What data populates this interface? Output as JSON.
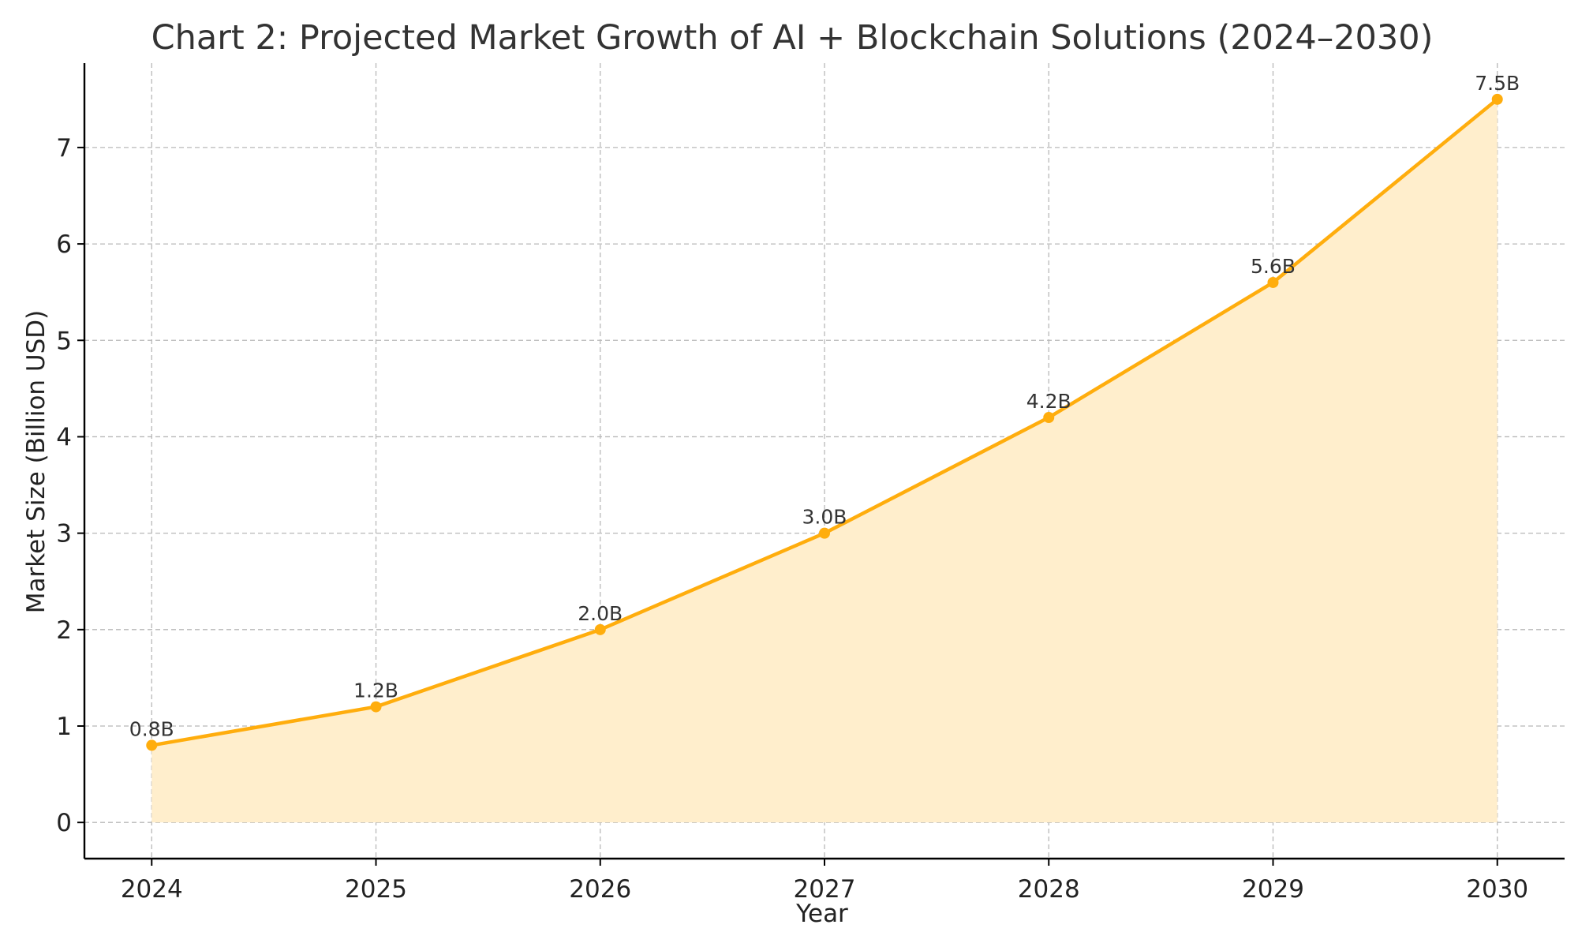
{
  "chart_data": {
    "type": "area",
    "title": "Chart 2: Projected Market Growth of AI + Blockchain Solutions (2024–2030)",
    "xlabel": "Year",
    "ylabel": "Market Size (Billion USD)",
    "x": [
      "2024",
      "2025",
      "2026",
      "2027",
      "2028",
      "2029",
      "2030"
    ],
    "y": [
      0.8,
      1.2,
      2.0,
      3.0,
      4.2,
      5.6,
      7.5
    ],
    "data_labels": [
      "0.8B",
      "1.2B",
      "2.0B",
      "3.0B",
      "4.2B",
      "5.6B",
      "7.5B"
    ],
    "yticks": [
      "0",
      "1",
      "2",
      "3",
      "4",
      "5",
      "6",
      "7"
    ],
    "xlim": [
      2023.7,
      2030.3
    ],
    "ylim": [
      -0.375,
      7.875
    ],
    "grid": true,
    "colors": {
      "line": "#ffad0d",
      "fill": "#ffeecc"
    }
  }
}
